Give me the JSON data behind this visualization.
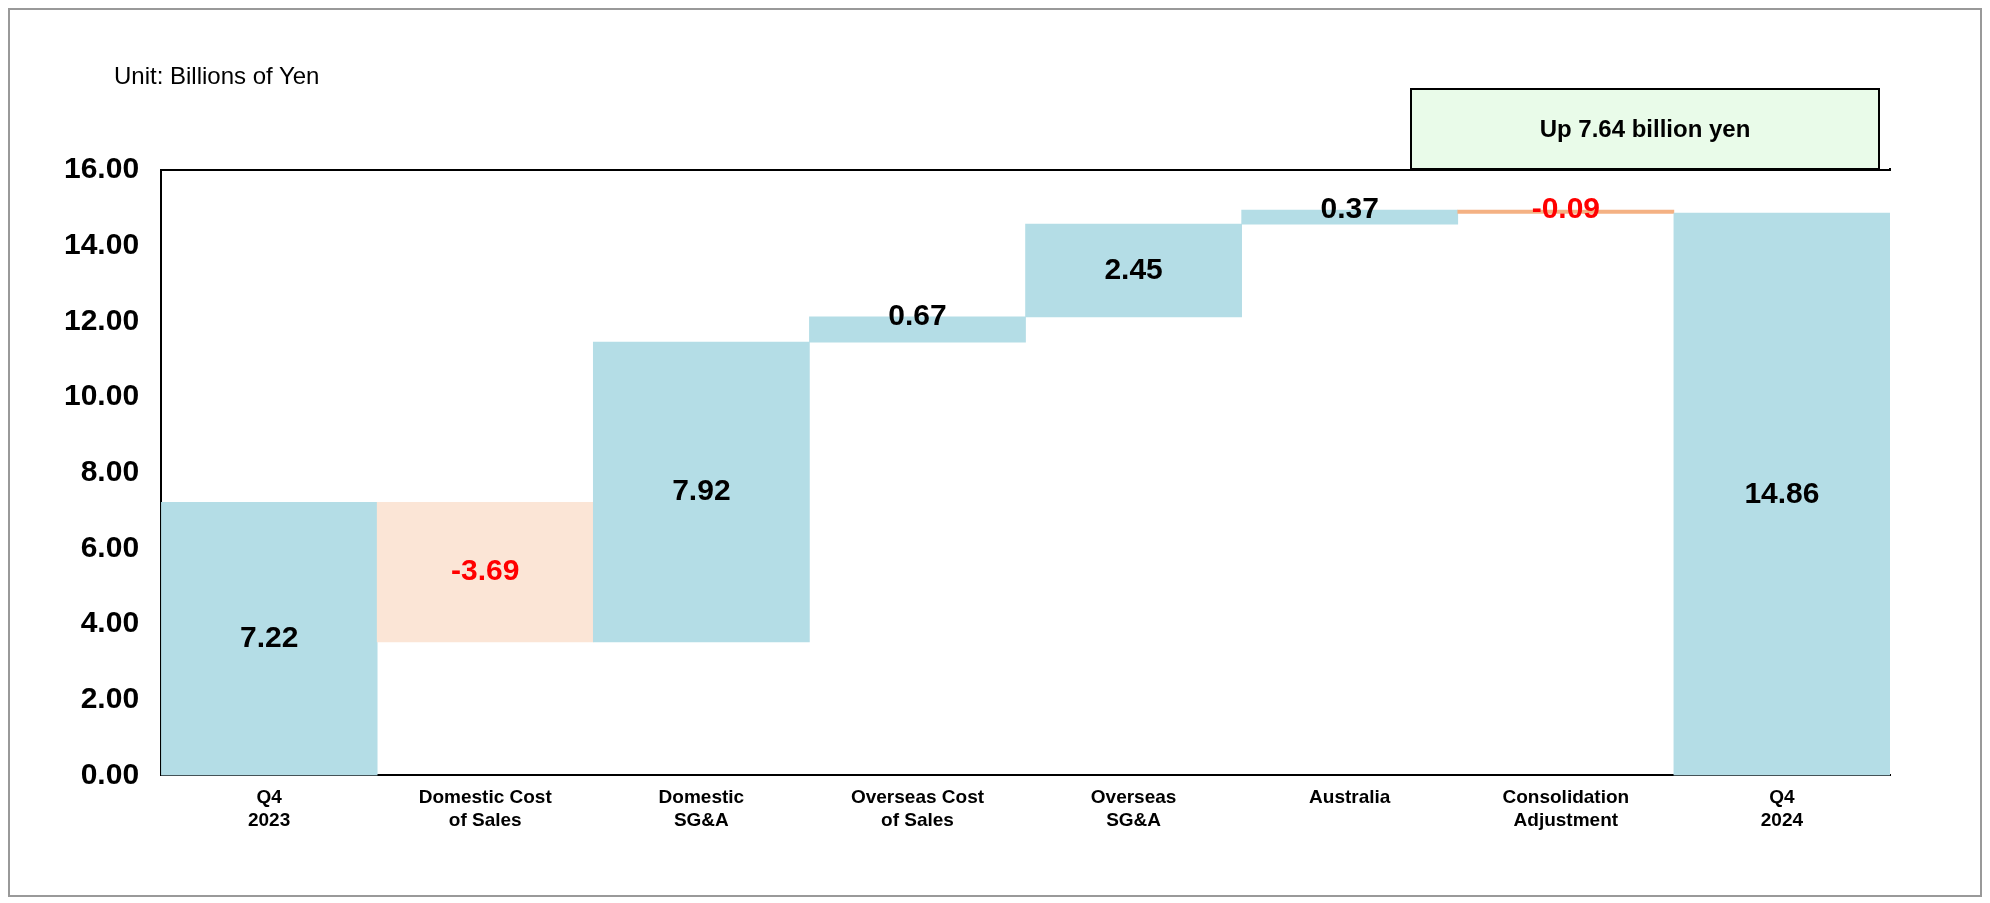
{
  "chart_data": {
    "type": "bar",
    "ylabel": "Unit: Billions of Yen",
    "categories": [
      "Q4 2023",
      "Domestic Cost of Sales",
      "Domestic SG&A",
      "Overseas Cost of Sales",
      "Overseas SG&A",
      "Australia",
      "Consolidation Adjustment",
      "Q4 2024"
    ],
    "values": [
      7.22,
      -3.69,
      7.92,
      0.67,
      2.45,
      0.37,
      -0.09,
      14.86
    ],
    "base": [
      0,
      7.22,
      3.53,
      11.45,
      12.12,
      14.57,
      14.94,
      0
    ],
    "colors": [
      "#b4dde6",
      "#fbe5d6",
      "#b4dde6",
      "#b4dde6",
      "#b4dde6",
      "#b4dde6",
      "#f4b183",
      "#b4dde6"
    ],
    "ylim": [
      0,
      16
    ],
    "yticks": [
      {
        "value": 0,
        "label": "0.00"
      },
      {
        "value": 2,
        "label": "2.00"
      },
      {
        "value": 4,
        "label": "4.00"
      },
      {
        "value": 6,
        "label": "6.00"
      },
      {
        "value": 8,
        "label": "8.00"
      },
      {
        "value": 10,
        "label": "10.00"
      },
      {
        "value": 12,
        "label": "12.00"
      },
      {
        "value": 14,
        "label": "14.00"
      },
      {
        "value": 16,
        "label": "16.00"
      }
    ],
    "data_labels": true,
    "grid": false,
    "legend": false,
    "annotations": [
      "Up 7.64 billion yen"
    ]
  }
}
